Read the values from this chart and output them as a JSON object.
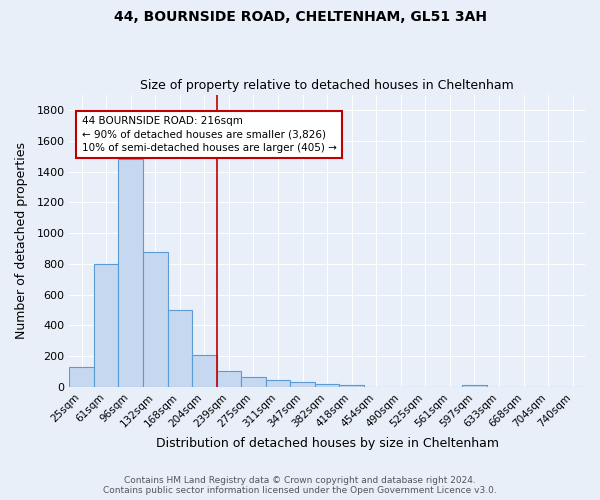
{
  "title": "44, BOURNSIDE ROAD, CHELTENHAM, GL51 3AH",
  "subtitle": "Size of property relative to detached houses in Cheltenham",
  "xlabel": "Distribution of detached houses by size in Cheltenham",
  "ylabel": "Number of detached properties",
  "footer_line1": "Contains HM Land Registry data © Crown copyright and database right 2024.",
  "footer_line2": "Contains public sector information licensed under the Open Government Licence v3.0.",
  "bin_labels": [
    "25sqm",
    "61sqm",
    "96sqm",
    "132sqm",
    "168sqm",
    "204sqm",
    "239sqm",
    "275sqm",
    "311sqm",
    "347sqm",
    "382sqm",
    "418sqm",
    "454sqm",
    "490sqm",
    "525sqm",
    "561sqm",
    "597sqm",
    "633sqm",
    "668sqm",
    "704sqm",
    "740sqm"
  ],
  "bar_heights": [
    130,
    800,
    1480,
    880,
    500,
    205,
    105,
    65,
    48,
    35,
    20,
    12,
    0,
    0,
    0,
    0,
    15,
    0,
    0,
    0,
    0
  ],
  "bar_color": "#c5d8f0",
  "bar_edge_color": "#5b9bd5",
  "background_color": "#e8eff9",
  "grid_color": "#ffffff",
  "red_line_x": 5.5,
  "red_line_color": "#c00000",
  "annotation_line1": "44 BOURNSIDE ROAD: 216sqm",
  "annotation_line2": "← 90% of detached houses are smaller (3,826)",
  "annotation_line3": "10% of semi-detached houses are larger (405) →",
  "annotation_box_color": "#ffffff",
  "annotation_border_color": "#c00000",
  "ylim": [
    0,
    1900
  ],
  "yticks": [
    0,
    200,
    400,
    600,
    800,
    1000,
    1200,
    1400,
    1600,
    1800
  ]
}
